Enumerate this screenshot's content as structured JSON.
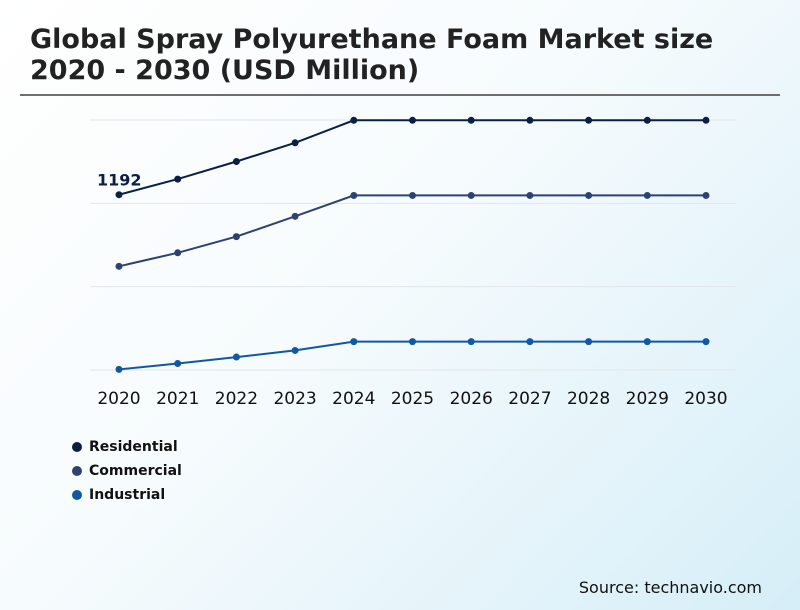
{
  "title": "Global Spray Polyurethane Foam Market size 2020 - 2030 (USD Million)",
  "source": "Source: technavio.com",
  "chart_data": {
    "type": "line",
    "title": "Global Spray Polyurethane Foam Market size 2020 - 2030 (USD Million)",
    "x": [
      "2020",
      "2021",
      "2022",
      "2023",
      "2024",
      "2025",
      "2026",
      "2027",
      "2028",
      "2029",
      "2030"
    ],
    "ylim": [
      0,
      1700
    ],
    "grid": true,
    "legend_position": "bottom-left",
    "series": [
      {
        "name": "Residential",
        "color": "#0b1f45",
        "values": [
          1192,
          1298,
          1418,
          1545,
          1698,
          1698,
          1698,
          1698,
          1698,
          1698,
          1698
        ]
      },
      {
        "name": "Commercial",
        "color": "#2e4170",
        "values": [
          705,
          797,
          907,
          1045,
          1187,
          1187,
          1187,
          1187,
          1187,
          1187,
          1187
        ]
      },
      {
        "name": "Industrial",
        "color": "#1158a3",
        "values": [
          4,
          44,
          88,
          133,
          193,
          193,
          193,
          193,
          193,
          193,
          193
        ]
      }
    ],
    "annotations": [
      {
        "series": "Residential",
        "x": "2020",
        "text": "1192"
      }
    ]
  }
}
